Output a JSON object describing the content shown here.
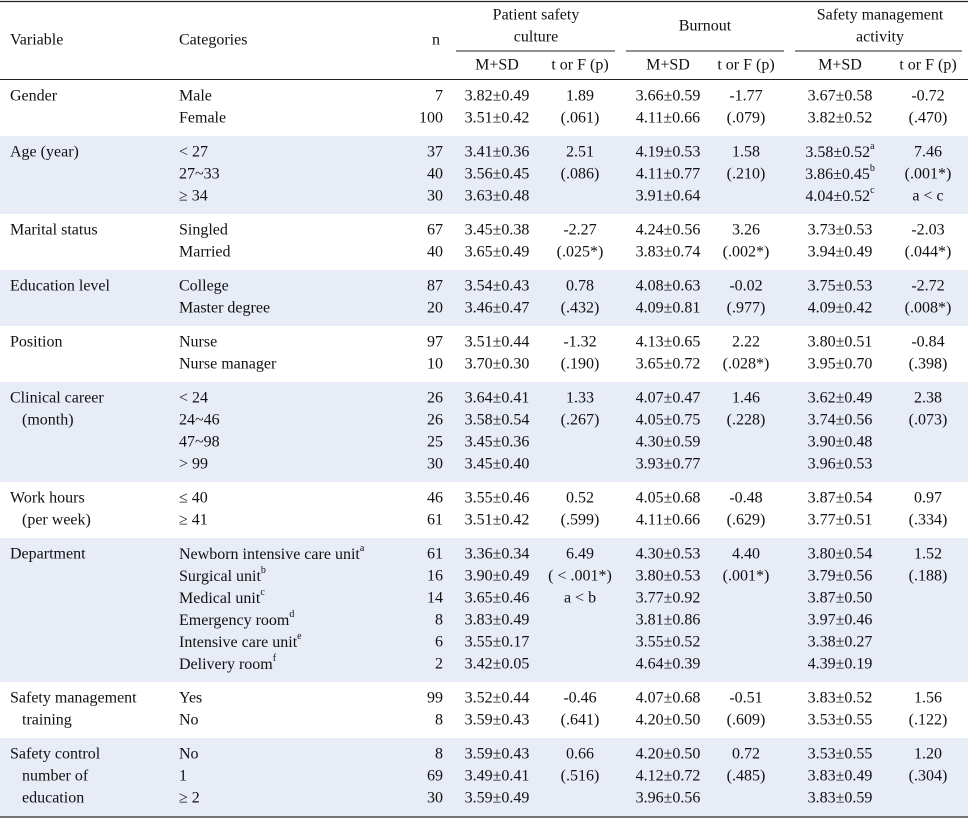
{
  "header": {
    "variable": "Variable",
    "categories": "Categories",
    "n": "n",
    "groups": [
      {
        "lines": [
          "Patient safety",
          "culture"
        ]
      },
      {
        "lines": [
          "Burnout"
        ]
      },
      {
        "lines": [
          "Safety management",
          "activity"
        ]
      }
    ],
    "sub": [
      "M+SD",
      "t or F (p)",
      "M+SD",
      "t or F (p)",
      "M+SD",
      "t or F (p)"
    ]
  },
  "table": {
    "groups": [
      {
        "variable": [
          "Gender"
        ],
        "rows": [
          [
            "Male",
            7,
            "3.82±0.49",
            "1.89",
            "3.66±0.59",
            "-1.77",
            "3.67±0.58",
            "-0.72"
          ],
          [
            "Female",
            100,
            "3.51±0.42",
            "(.061)",
            "4.11±0.66",
            "(.079)",
            "3.82±0.52",
            "(.470)"
          ]
        ]
      },
      {
        "variable": [
          "Age (year)"
        ],
        "rows": [
          [
            "< 27",
            37,
            "3.41±0.36",
            "2.51",
            "4.19±0.53",
            "1.58",
            {
              "text": "3.58±0.52",
              "sup": "a"
            },
            "7.46"
          ],
          [
            "27~33",
            40,
            "3.56±0.45",
            "(.086)",
            "4.11±0.77",
            "(.210)",
            {
              "text": "3.86±0.45",
              "sup": "b"
            },
            "(.001*)"
          ],
          [
            "≥ 34",
            30,
            "3.63±0.48",
            null,
            "3.91±0.64",
            null,
            {
              "text": "4.04±0.52",
              "sup": "c"
            },
            "a < c"
          ]
        ]
      },
      {
        "variable": [
          "Marital status"
        ],
        "rows": [
          [
            "Singled",
            67,
            "3.45±0.38",
            "-2.27",
            "4.24±0.56",
            "3.26",
            "3.73±0.53",
            "-2.03"
          ],
          [
            "Married",
            40,
            "3.65±0.49",
            "(.025*)",
            "3.83±0.74",
            "(.002*)",
            "3.94±0.49",
            "(.044*)"
          ]
        ]
      },
      {
        "variable": [
          "Education level"
        ],
        "rows": [
          [
            "College",
            87,
            "3.54±0.43",
            "0.78",
            "4.08±0.63",
            "-0.02",
            "3.75±0.53",
            "-2.72"
          ],
          [
            "Master degree",
            20,
            "3.46±0.47",
            "(.432)",
            "4.09±0.81",
            "(.977)",
            "4.09±0.42",
            "(.008*)"
          ]
        ]
      },
      {
        "variable": [
          "Position"
        ],
        "rows": [
          [
            "Nurse",
            97,
            "3.51±0.44",
            "-1.32",
            "4.13±0.65",
            "2.22",
            "3.80±0.51",
            "-0.84"
          ],
          [
            "Nurse manager",
            10,
            "3.70±0.30",
            "(.190)",
            "3.65±0.72",
            "(.028*)",
            "3.95±0.70",
            "(.398)"
          ]
        ]
      },
      {
        "variable": [
          "Clinical career",
          "(month)"
        ],
        "rows": [
          [
            "< 24",
            26,
            "3.64±0.41",
            "1.33",
            "4.07±0.47",
            "1.46",
            "3.62±0.49",
            "2.38"
          ],
          [
            "24~46",
            26,
            "3.58±0.54",
            "(.267)",
            "4.05±0.75",
            "(.228)",
            "3.74±0.56",
            "(.073)"
          ],
          [
            "47~98",
            25,
            "3.45±0.36",
            null,
            "4.30±0.59",
            null,
            "3.90±0.48",
            null
          ],
          [
            "> 99",
            30,
            "3.45±0.40",
            null,
            "3.93±0.77",
            null,
            "3.96±0.53",
            null
          ]
        ]
      },
      {
        "variable": [
          "Work hours",
          "(per week)"
        ],
        "rows": [
          [
            "≤ 40",
            46,
            "3.55±0.46",
            "0.52",
            "4.05±0.68",
            "-0.48",
            "3.87±0.54",
            "0.97"
          ],
          [
            "≥ 41",
            61,
            "3.51±0.42",
            "(.599)",
            "4.11±0.66",
            "(.629)",
            "3.77±0.51",
            "(.334)"
          ]
        ]
      },
      {
        "variable": [
          "Department"
        ],
        "rows": [
          [
            {
              "text": "Newborn intensive care unit",
              "sup": "a"
            },
            61,
            "3.36±0.34",
            "6.49",
            "4.30±0.53",
            "4.40",
            "3.80±0.54",
            "1.52"
          ],
          [
            {
              "text": "Surgical unit",
              "sup": "b"
            },
            16,
            "3.90±0.49",
            "( < .001*)",
            "3.80±0.53",
            "(.001*)",
            "3.79±0.56",
            "(.188)"
          ],
          [
            {
              "text": "Medical unit",
              "sup": "c"
            },
            14,
            "3.65±0.46",
            "a < b",
            "3.77±0.92",
            null,
            "3.87±0.50",
            null
          ],
          [
            {
              "text": "Emergency room",
              "sup": "d"
            },
            8,
            "3.83±0.49",
            null,
            "3.81±0.86",
            null,
            "3.97±0.46",
            null
          ],
          [
            {
              "text": "Intensive care unit",
              "sup": "e"
            },
            6,
            "3.55±0.17",
            null,
            "3.55±0.52",
            null,
            "3.38±0.27",
            null
          ],
          [
            {
              "text": "Delivery room",
              "sup": "f"
            },
            2,
            "3.42±0.05",
            null,
            "4.64±0.39",
            null,
            "4.39±0.19",
            null
          ]
        ]
      },
      {
        "variable": [
          "Safety management",
          "training"
        ],
        "rows": [
          [
            "Yes",
            99,
            "3.52±0.44",
            "-0.46",
            "4.07±0.68",
            "-0.51",
            "3.83±0.52",
            "1.56"
          ],
          [
            "No",
            8,
            "3.59±0.43",
            "(.641)",
            "4.20±0.50",
            "(.609)",
            "3.53±0.55",
            "(.122)"
          ]
        ]
      },
      {
        "variable": [
          "Safety control",
          "number of",
          "education"
        ],
        "rows": [
          [
            "No",
            8,
            "3.59±0.43",
            "0.66",
            "4.20±0.50",
            "0.72",
            "3.53±0.55",
            "1.20"
          ],
          [
            "1",
            69,
            "3.49±0.41",
            "(.516)",
            "4.12±0.72",
            "(.485)",
            "3.83±0.49",
            "(.304)"
          ],
          [
            "≥ 2",
            30,
            "3.59±0.49",
            null,
            "3.96±0.56",
            null,
            "3.83±0.59",
            null
          ]
        ]
      }
    ]
  }
}
